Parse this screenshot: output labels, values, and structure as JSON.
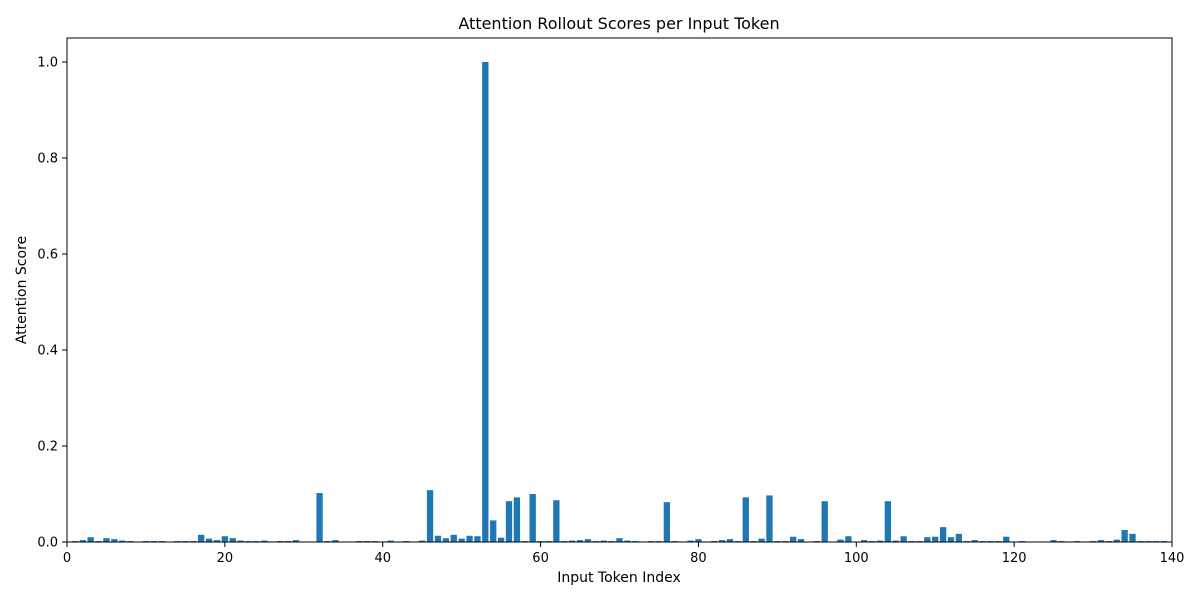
{
  "chart_data": {
    "type": "bar",
    "title": "Attention Rollout Scores per Input Token",
    "xlabel": "Input Token Index",
    "ylabel": "Attention Score",
    "xlim": [
      0,
      140
    ],
    "ylim": [
      0,
      1.05
    ],
    "xticks": [
      0,
      20,
      40,
      60,
      80,
      100,
      120,
      140
    ],
    "yticks": [
      0.0,
      0.2,
      0.4,
      0.6,
      0.8,
      1.0
    ],
    "xtick_labels": [
      "0",
      "20",
      "40",
      "60",
      "80",
      "100",
      "120",
      "140"
    ],
    "ytick_labels": [
      "0.0",
      "0.2",
      "0.4",
      "0.6",
      "0.8",
      "1.0"
    ],
    "grid": false,
    "bar_color": "#1f77b4",
    "x": [
      0,
      1,
      2,
      3,
      4,
      5,
      6,
      7,
      8,
      9,
      10,
      11,
      12,
      13,
      14,
      15,
      16,
      17,
      18,
      19,
      20,
      21,
      22,
      23,
      24,
      25,
      26,
      27,
      28,
      29,
      30,
      31,
      32,
      33,
      34,
      35,
      36,
      37,
      38,
      39,
      40,
      41,
      42,
      43,
      44,
      45,
      46,
      47,
      48,
      49,
      50,
      51,
      52,
      53,
      54,
      55,
      56,
      57,
      58,
      59,
      60,
      61,
      62,
      63,
      64,
      65,
      66,
      67,
      68,
      69,
      70,
      71,
      72,
      73,
      74,
      75,
      76,
      77,
      78,
      79,
      80,
      81,
      82,
      83,
      84,
      85,
      86,
      87,
      88,
      89,
      90,
      91,
      92,
      93,
      94,
      95,
      96,
      97,
      98,
      99,
      100,
      101,
      102,
      103,
      104,
      105,
      106,
      107,
      108,
      109,
      110,
      111,
      112,
      113,
      114,
      115,
      116,
      117,
      118,
      119,
      120,
      121,
      122,
      123,
      124,
      125,
      126,
      127,
      128,
      129,
      130,
      131,
      132,
      133,
      134,
      135,
      136,
      137,
      138,
      139
    ],
    "values": [
      0.001,
      0.002,
      0.004,
      0.01,
      0.002,
      0.008,
      0.006,
      0.003,
      0.002,
      0.001,
      0.002,
      0.002,
      0.002,
      0.001,
      0.002,
      0.002,
      0.002,
      0.015,
      0.007,
      0.004,
      0.012,
      0.008,
      0.003,
      0.002,
      0.002,
      0.003,
      0.001,
      0.002,
      0.002,
      0.004,
      0.001,
      0.001,
      0.102,
      0.002,
      0.004,
      0.001,
      0.001,
      0.002,
      0.002,
      0.002,
      0.001,
      0.003,
      0.001,
      0.002,
      0.001,
      0.003,
      0.108,
      0.013,
      0.008,
      0.015,
      0.007,
      0.013,
      0.012,
      1.0,
      0.045,
      0.009,
      0.085,
      0.093,
      0.002,
      0.1,
      0.002,
      0.002,
      0.087,
      0.002,
      0.003,
      0.004,
      0.006,
      0.002,
      0.003,
      0.002,
      0.008,
      0.003,
      0.002,
      0.001,
      0.002,
      0.002,
      0.083,
      0.002,
      0.001,
      0.003,
      0.006,
      0.001,
      0.002,
      0.004,
      0.006,
      0.002,
      0.093,
      0.002,
      0.007,
      0.097,
      0.002,
      0.002,
      0.011,
      0.006,
      0.001,
      0.002,
      0.085,
      0.001,
      0.005,
      0.012,
      0.001,
      0.004,
      0.002,
      0.003,
      0.085,
      0.003,
      0.012,
      0.002,
      0.002,
      0.01,
      0.011,
      0.031,
      0.01,
      0.017,
      0.002,
      0.004,
      0.002,
      0.002,
      0.002,
      0.011,
      0.001,
      0.002,
      0.001,
      0.001,
      0.001,
      0.004,
      0.002,
      0.001,
      0.002,
      0.001,
      0.002,
      0.004,
      0.002,
      0.005,
      0.025,
      0.017,
      0.002,
      0.002,
      0.002,
      0.002
    ]
  }
}
